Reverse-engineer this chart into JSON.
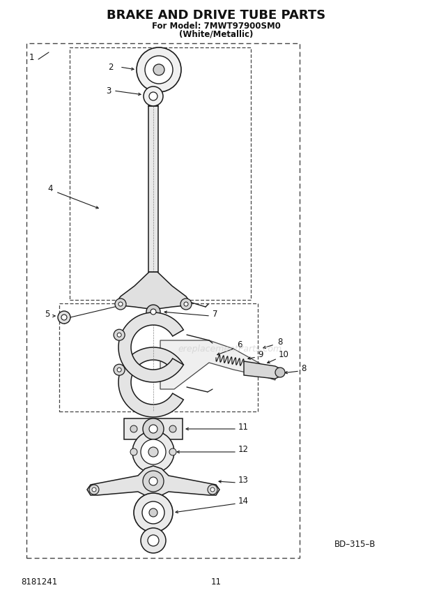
{
  "title": "BRAKE AND DRIVE TUBE PARTS",
  "subtitle1": "For Model: 7MWT97900SM0",
  "subtitle2": "(White/Metallic)",
  "diagram_code": "BD–315–B",
  "part_number": "8181241",
  "page_number": "11",
  "bg_color": "#ffffff",
  "lc": "#1a1a1a",
  "dc": "#444444",
  "watermark": "ereplacementParts.com",
  "figw": 6.2,
  "figh": 8.56,
  "dpi": 100
}
